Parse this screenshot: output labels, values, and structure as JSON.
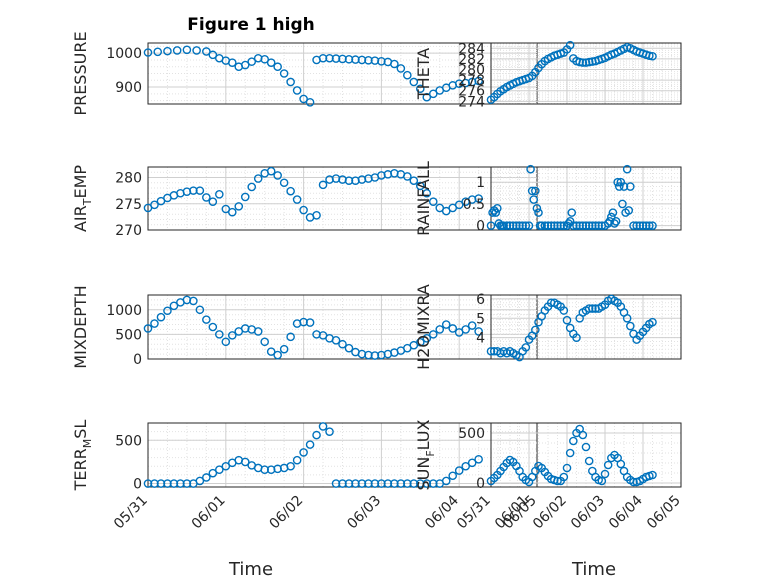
{
  "figure": {
    "title": "Figure 1 high",
    "xlabel": "Time",
    "xticks": [
      "05/31",
      "06/01",
      "06/02",
      "06/03",
      "06/04",
      "06/05"
    ]
  },
  "colors": {
    "marker": "#0072BD",
    "grid": "#cfcfcf",
    "axis": "#262626"
  },
  "chart_data": [
    {
      "type": "scatter",
      "name": "pressure",
      "ylabel": "PRESSURE",
      "title": "Figure 1 high",
      "xlim": [
        "05/31",
        "06/05"
      ],
      "ylim": [
        850,
        1030
      ],
      "yticks": [
        900,
        1000
      ],
      "ytick_labels": [
        "900",
        "1000"
      ],
      "x_hours": [
        0,
        3,
        6,
        9,
        12,
        15,
        18,
        20,
        22,
        24,
        26,
        28,
        30,
        32,
        34,
        36,
        38,
        40,
        42,
        44,
        46,
        48,
        50,
        52,
        54,
        56,
        58,
        60,
        62,
        64,
        66,
        68,
        70,
        72,
        74,
        76,
        78,
        80,
        82,
        84,
        86,
        88,
        90,
        92,
        94,
        96,
        98,
        100,
        102
      ],
      "values": [
        1002,
        1004,
        1006,
        1008,
        1010,
        1008,
        1005,
        995,
        985,
        978,
        972,
        960,
        965,
        975,
        985,
        982,
        972,
        960,
        940,
        915,
        890,
        865,
        855,
        980,
        985,
        985,
        984,
        983,
        982,
        981,
        980,
        979,
        978,
        976,
        974,
        968,
        955,
        935,
        915,
        895,
        870,
        880,
        890,
        898,
        905,
        910,
        912,
        915,
        918
      ]
    },
    {
      "type": "scatter",
      "name": "theta",
      "ylabel": "THETA",
      "xlim": [
        "05/31",
        "06/05"
      ],
      "ylim": [
        273.5,
        285
      ],
      "yticks": [
        274,
        276,
        278,
        280,
        282,
        284
      ],
      "ytick_labels": [
        "274",
        "276",
        "278",
        "280",
        "282",
        "284"
      ],
      "x_hours": [
        0,
        2,
        4,
        6,
        8,
        10,
        12,
        14,
        16,
        18,
        20,
        22,
        24,
        26,
        28,
        30,
        32,
        34,
        36,
        38,
        40,
        42,
        44,
        46,
        48,
        50,
        52,
        54,
        56,
        58,
        60,
        62,
        64,
        66,
        68,
        70,
        72,
        74,
        76,
        78,
        80,
        82,
        84,
        86,
        88,
        90,
        92,
        94,
        96,
        98,
        100,
        102
      ],
      "values": [
        274.3,
        274.8,
        275.4,
        275.9,
        276.3,
        276.7,
        277.0,
        277.3,
        277.6,
        277.8,
        278.0,
        278.2,
        278.4,
        278.8,
        279.5,
        280.3,
        281.0,
        281.6,
        282.0,
        282.3,
        282.6,
        282.8,
        283.0,
        283.2,
        283.8,
        284.6,
        282.1,
        281.6,
        281.4,
        281.3,
        281.3,
        281.4,
        281.5,
        281.6,
        281.8,
        282.0,
        282.2,
        282.5,
        282.8,
        283.0,
        283.3,
        283.6,
        283.9,
        284.2,
        284.0,
        283.7,
        283.4,
        283.2,
        283.0,
        282.8,
        282.6,
        282.5
      ]
    },
    {
      "type": "scatter",
      "name": "air_temp",
      "ylabel": "AIR_TEMP",
      "xlim": [
        "05/31",
        "06/05"
      ],
      "ylim": [
        270,
        282
      ],
      "yticks": [
        270,
        275,
        280
      ],
      "ytick_labels": [
        "270",
        "275",
        "280"
      ],
      "x_hours": [
        0,
        2,
        4,
        6,
        8,
        10,
        12,
        14,
        16,
        18,
        20,
        22,
        24,
        26,
        28,
        30,
        32,
        34,
        36,
        38,
        40,
        42,
        44,
        46,
        48,
        50,
        52,
        54,
        56,
        58,
        60,
        62,
        64,
        66,
        68,
        70,
        72,
        74,
        76,
        78,
        80,
        82,
        84,
        86,
        88,
        90,
        92,
        94,
        96,
        98,
        100,
        102
      ],
      "values": [
        274.2,
        274.8,
        275.5,
        276.1,
        276.6,
        277.0,
        277.3,
        277.5,
        277.5,
        276.2,
        275.4,
        276.8,
        274.0,
        273.4,
        274.5,
        276.3,
        278.2,
        279.8,
        280.8,
        281.2,
        280.4,
        279.0,
        277.4,
        275.8,
        273.8,
        272.4,
        272.8,
        278.6,
        279.6,
        279.8,
        279.6,
        279.4,
        279.4,
        279.6,
        279.8,
        280.0,
        280.4,
        280.6,
        280.8,
        280.6,
        280.2,
        279.4,
        278.4,
        277.0,
        275.4,
        274.2,
        273.6,
        274.2,
        274.8,
        275.4,
        275.8,
        276.0
      ]
    },
    {
      "type": "scatter",
      "name": "rainfall",
      "ylabel": "RAINFALL",
      "xlim": [
        "05/31",
        "06/05"
      ],
      "ylim": [
        -0.1,
        1.35
      ],
      "yticks": [
        0,
        0.5,
        1
      ],
      "ytick_labels": [
        "0",
        "0.5",
        "1"
      ],
      "x_hours": [
        0,
        1,
        2,
        3,
        4,
        5,
        6,
        7,
        8,
        10,
        12,
        14,
        16,
        18,
        20,
        22,
        24,
        25,
        26,
        27,
        28,
        29,
        30,
        31,
        32,
        34,
        36,
        38,
        40,
        42,
        44,
        46,
        48,
        49,
        50,
        51,
        52,
        54,
        56,
        58,
        60,
        62,
        64,
        66,
        68,
        70,
        72,
        74,
        75,
        76,
        77,
        78,
        79,
        80,
        81,
        82,
        83,
        84,
        85,
        86,
        87,
        88,
        90,
        92,
        94,
        96,
        98,
        100,
        102
      ],
      "values": [
        0,
        0.3,
        0.35,
        0.3,
        0.4,
        0.05,
        0,
        0,
        0,
        0,
        0,
        0,
        0,
        0,
        0,
        0,
        0,
        1.3,
        0.8,
        0.6,
        0.8,
        0.4,
        0.3,
        0,
        0,
        0,
        0,
        0,
        0,
        0,
        0,
        0,
        0,
        0.05,
        0.1,
        0.3,
        0,
        0,
        0,
        0,
        0,
        0,
        0,
        0,
        0,
        0,
        0,
        0.05,
        0.1,
        0.2,
        0.3,
        0.05,
        0.1,
        1.0,
        0.9,
        1.0,
        0.5,
        0.9,
        0.3,
        1.3,
        0.35,
        0.9,
        0,
        0,
        0,
        0,
        0,
        0,
        0
      ]
    },
    {
      "type": "scatter",
      "name": "mixdepth",
      "ylabel": "MIXDEPTH",
      "xlim": [
        "05/31",
        "06/05"
      ],
      "ylim": [
        0,
        1300
      ],
      "yticks": [
        0,
        500,
        1000
      ],
      "ytick_labels": [
        "0",
        "500",
        "1000"
      ],
      "x_hours": [
        0,
        2,
        4,
        6,
        8,
        10,
        12,
        14,
        16,
        18,
        20,
        22,
        24,
        26,
        28,
        30,
        32,
        34,
        36,
        38,
        40,
        42,
        44,
        46,
        48,
        50,
        52,
        54,
        56,
        58,
        60,
        62,
        64,
        66,
        68,
        70,
        72,
        74,
        76,
        78,
        80,
        82,
        84,
        86,
        88,
        90,
        92,
        94,
        96,
        98,
        100,
        102
      ],
      "values": [
        620,
        720,
        850,
        980,
        1080,
        1150,
        1200,
        1180,
        1000,
        800,
        650,
        500,
        350,
        480,
        560,
        620,
        600,
        560,
        350,
        150,
        80,
        200,
        450,
        720,
        750,
        740,
        500,
        480,
        420,
        380,
        300,
        220,
        140,
        100,
        80,
        70,
        80,
        100,
        130,
        170,
        220,
        280,
        340,
        420,
        500,
        600,
        700,
        620,
        540,
        600,
        680,
        560
      ]
    },
    {
      "type": "scatter",
      "name": "h2omixra",
      "ylabel": "H2OMIXRA",
      "xlim": [
        "05/31",
        "06/05"
      ],
      "ylim": [
        2.9,
        6.2
      ],
      "yticks": [
        4,
        5,
        6
      ],
      "ytick_labels": [
        "4",
        "5",
        "6"
      ],
      "x_hours": [
        0,
        2,
        4,
        6,
        8,
        10,
        12,
        14,
        16,
        18,
        20,
        22,
        24,
        26,
        28,
        30,
        32,
        34,
        36,
        38,
        40,
        42,
        44,
        46,
        48,
        50,
        52,
        54,
        56,
        58,
        60,
        62,
        64,
        66,
        68,
        70,
        72,
        74,
        76,
        78,
        80,
        82,
        84,
        86,
        88,
        90,
        92,
        94,
        96,
        98,
        100,
        102
      ],
      "values": [
        3.3,
        3.3,
        3.3,
        3.2,
        3.3,
        3.2,
        3.3,
        3.2,
        3.1,
        3.0,
        3.3,
        3.5,
        3.9,
        4.1,
        4.4,
        4.8,
        5.1,
        5.4,
        5.6,
        5.8,
        5.8,
        5.7,
        5.6,
        5.4,
        4.9,
        4.5,
        4.2,
        4.0,
        5.0,
        5.3,
        5.4,
        5.5,
        5.5,
        5.5,
        5.5,
        5.6,
        5.7,
        5.9,
        6.0,
        5.9,
        5.8,
        5.6,
        5.3,
        5.0,
        4.6,
        4.2,
        3.9,
        4.1,
        4.3,
        4.5,
        4.7,
        4.8
      ]
    },
    {
      "type": "scatter",
      "name": "terr_msl",
      "ylabel": "TERR_MSL",
      "xlim": [
        "05/31",
        "06/05"
      ],
      "ylim": [
        -40,
        700
      ],
      "yticks": [
        0,
        500
      ],
      "ytick_labels": [
        "0",
        "500"
      ],
      "x_hours": [
        0,
        2,
        4,
        6,
        8,
        10,
        12,
        14,
        16,
        18,
        20,
        22,
        24,
        26,
        28,
        30,
        32,
        34,
        36,
        38,
        40,
        42,
        44,
        46,
        48,
        50,
        52,
        54,
        56,
        58,
        60,
        62,
        64,
        66,
        68,
        70,
        72,
        74,
        76,
        78,
        80,
        82,
        84,
        86,
        88,
        90,
        92,
        94,
        96,
        98,
        100,
        102
      ],
      "values": [
        0,
        0,
        0,
        0,
        0,
        0,
        0,
        0,
        30,
        70,
        120,
        160,
        200,
        240,
        270,
        250,
        210,
        180,
        160,
        160,
        170,
        180,
        200,
        270,
        360,
        450,
        560,
        660,
        600,
        0,
        0,
        0,
        0,
        0,
        0,
        0,
        0,
        0,
        0,
        0,
        0,
        0,
        0,
        0,
        0,
        0,
        30,
        90,
        150,
        200,
        240,
        280
      ]
    },
    {
      "type": "scatter",
      "name": "sun_flux",
      "ylabel": "SUN_FLUX",
      "xlim": [
        "05/31",
        "06/05"
      ],
      "ylim": [
        -40,
        600
      ],
      "yticks": [
        0,
        500
      ],
      "ytick_labels": [
        "0",
        "500"
      ],
      "x_hours": [
        0,
        2,
        4,
        6,
        8,
        10,
        12,
        14,
        16,
        18,
        20,
        22,
        24,
        26,
        28,
        30,
        32,
        34,
        36,
        38,
        40,
        42,
        44,
        46,
        48,
        50,
        52,
        54,
        56,
        58,
        60,
        62,
        64,
        66,
        68,
        70,
        72,
        74,
        76,
        78,
        80,
        82,
        84,
        86,
        88,
        90,
        92,
        94,
        96,
        98,
        100,
        102
      ],
      "values": [
        20,
        50,
        80,
        120,
        160,
        200,
        230,
        210,
        170,
        120,
        60,
        30,
        10,
        60,
        120,
        170,
        150,
        110,
        70,
        40,
        30,
        20,
        20,
        60,
        150,
        300,
        420,
        500,
        540,
        480,
        360,
        220,
        120,
        60,
        30,
        20,
        90,
        180,
        250,
        280,
        250,
        190,
        120,
        60,
        30,
        10,
        10,
        20,
        40,
        60,
        70,
        80
      ]
    }
  ]
}
